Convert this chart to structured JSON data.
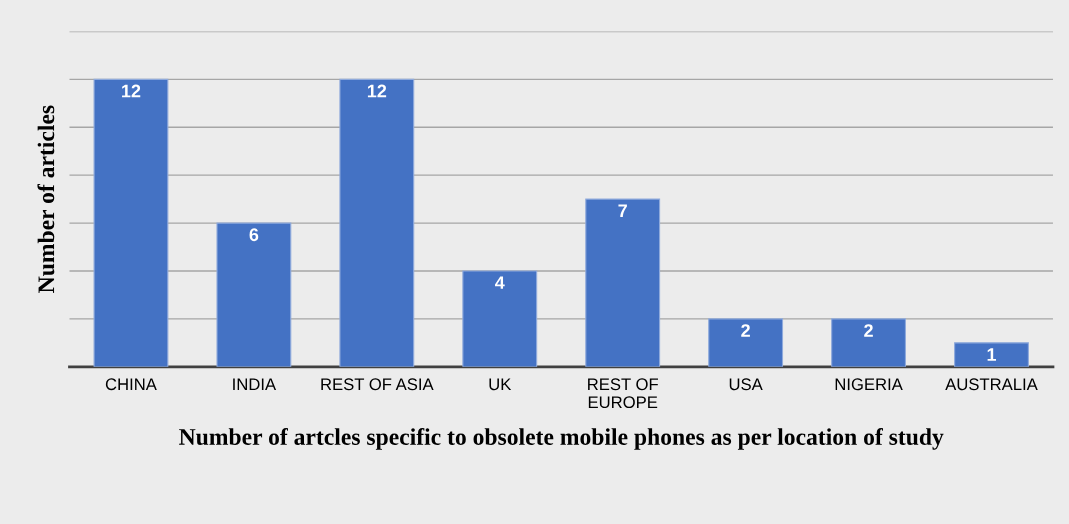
{
  "chart_data": {
    "type": "bar",
    "xlabel": "Number of artcles specific to obsolete mobile phones as per location of study",
    "ylabel": "Number of articles",
    "categories": [
      "CHINA",
      "INDIA",
      "REST OF ASIA",
      "UK",
      "REST OF EUROPE",
      "USA",
      "NIGERIA",
      "AUSTRALIA"
    ],
    "values": [
      12,
      6,
      12,
      4,
      7,
      2,
      2,
      1
    ],
    "color": "#4472c4",
    "data_labels": true,
    "ylim": [
      0,
      14
    ],
    "yticks": [
      {
        "value": 0,
        "label": null
      },
      {
        "value": 2,
        "label": null
      },
      {
        "value": 4,
        "label": null
      },
      {
        "value": 6,
        "label": null
      },
      {
        "value": 8,
        "label": null
      },
      {
        "value": 10,
        "label": null
      },
      {
        "value": 12,
        "label": null
      },
      {
        "value": 14,
        "label": null
      }
    ],
    "grid": "y",
    "tick_labels": "x"
  }
}
